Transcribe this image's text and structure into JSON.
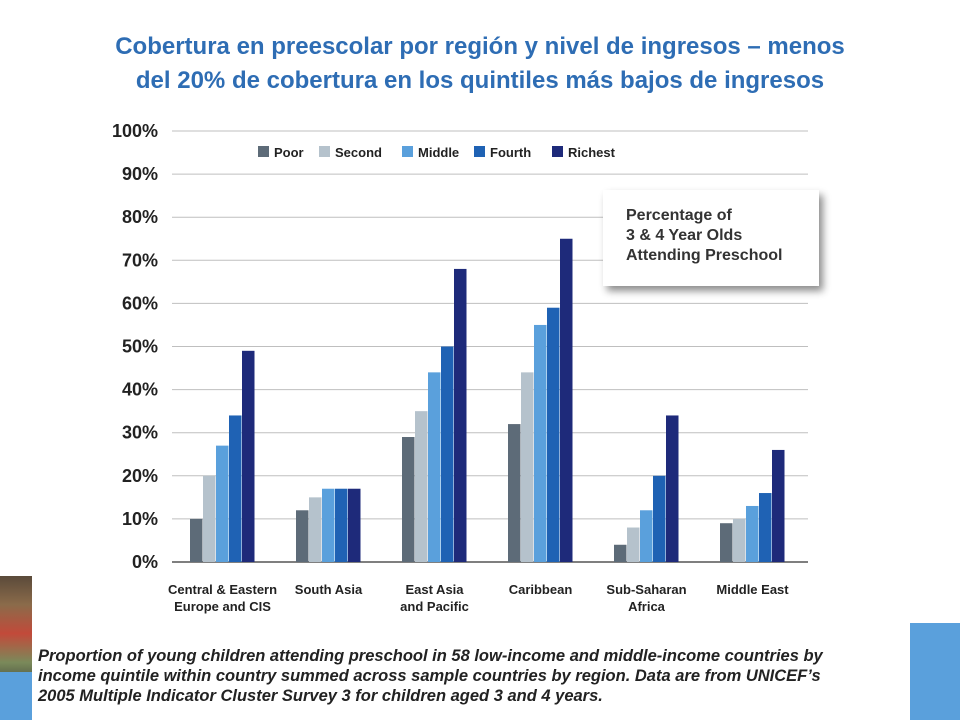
{
  "title": {
    "line1": "Cobertura en preescolar por región y nivel de ingresos – menos",
    "line2": "del 20% de cobertura en los quintiles más bajos de ingresos"
  },
  "chart_data": {
    "type": "bar",
    "categories": [
      [
        "Central & Eastern",
        "Europe and CIS"
      ],
      [
        "South Asia"
      ],
      [
        "East Asia",
        "and Pacific"
      ],
      [
        "Caribbean"
      ],
      [
        "Sub-Saharan",
        "Africa"
      ],
      [
        "Middle East"
      ]
    ],
    "series": [
      {
        "name": "Poor",
        "color": "#5d6b78",
        "values": [
          10,
          12,
          29,
          32,
          4,
          9
        ]
      },
      {
        "name": "Second",
        "color": "#b5c2cc",
        "values": [
          20,
          15,
          35,
          44,
          8,
          10
        ]
      },
      {
        "name": "Middle",
        "color": "#5aa0dc",
        "values": [
          27,
          17,
          44,
          55,
          12,
          13
        ]
      },
      {
        "name": "Fourth",
        "color": "#1f62b4",
        "values": [
          34,
          17,
          50,
          59,
          20,
          16
        ]
      },
      {
        "name": "Richest",
        "color": "#1e2a7a",
        "values": [
          49,
          17,
          68,
          75,
          34,
          26
        ]
      }
    ],
    "ylim": [
      0,
      100
    ],
    "yticks": [
      "0%",
      "10%",
      "20%",
      "30%",
      "40%",
      "50%",
      "60%",
      "70%",
      "80%",
      "90%",
      "100%"
    ],
    "grid": true,
    "legend_position": "top-left",
    "annotation": [
      "Percentage of",
      "3 & 4 Year Olds",
      "Attending Preschool"
    ]
  },
  "caption": {
    "line1": "Proportion of young children attending preschool in 58 low-income and middle-income countries by",
    "line2": "income quintile within country summed across sample countries by region. Data are from UNICEF’s",
    "line3": "2005 Multiple Indicator Cluster Survey 3 for children aged 3 and 4 years."
  }
}
